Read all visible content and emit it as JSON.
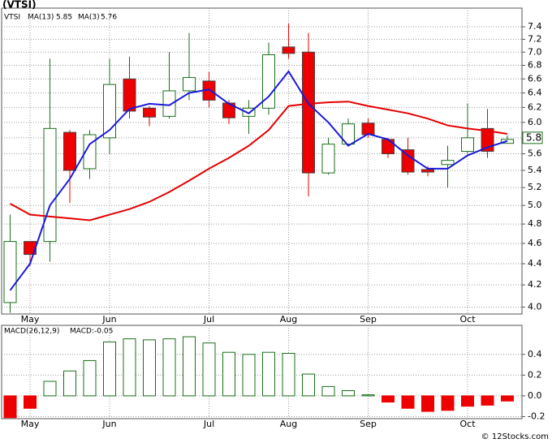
{
  "chart_data": [
    {
      "type": "candlestick",
      "title": "(VTSI)",
      "ticker": "VTSI",
      "categories": [
        null,
        "May",
        null,
        null,
        null,
        "Jun",
        null,
        null,
        null,
        null,
        "Jul",
        null,
        null,
        null,
        "Aug",
        null,
        null,
        null,
        "Sep",
        null,
        null,
        null,
        null,
        "Oct",
        null,
        null
      ],
      "open": [
        4.04,
        4.62,
        4.62,
        5.87,
        5.42,
        5.8,
        6.6,
        6.19,
        6.08,
        6.43,
        6.57,
        6.26,
        6.08,
        6.19,
        7.08,
        7.0,
        5.37,
        5.72,
        5.99,
        5.78,
        5.65,
        5.41,
        5.47,
        5.63,
        5.92,
        5.73
      ],
      "high": [
        4.9,
        4.62,
        6.9,
        5.9,
        5.9,
        6.9,
        6.93,
        6.22,
        7.0,
        7.3,
        6.7,
        6.3,
        6.3,
        7.15,
        7.45,
        7.3,
        5.8,
        6.05,
        6.05,
        5.8,
        5.8,
        5.45,
        5.7,
        6.25,
        6.18,
        5.83
      ],
      "low": [
        3.95,
        4.38,
        4.42,
        5.03,
        5.3,
        5.6,
        6.05,
        5.95,
        6.05,
        6.3,
        6.2,
        5.98,
        5.85,
        6.1,
        6.9,
        5.1,
        5.35,
        5.7,
        5.8,
        5.55,
        5.35,
        5.33,
        5.2,
        5.6,
        5.55,
        5.73
      ],
      "close": [
        4.62,
        4.49,
        5.92,
        5.4,
        5.84,
        6.52,
        6.15,
        6.07,
        6.43,
        6.62,
        6.3,
        6.06,
        6.19,
        6.96,
        6.98,
        5.37,
        5.72,
        5.98,
        5.84,
        5.6,
        5.38,
        5.38,
        5.52,
        5.8,
        5.63,
        5.78
      ],
      "up_color": "#1a6e1a",
      "down_color": "#ee0000",
      "series": [
        {
          "name": "MA(13)",
          "color": "#e60000",
          "last": 5.85,
          "values": [
            5.02,
            4.9,
            4.88,
            4.86,
            4.84,
            4.9,
            4.96,
            5.04,
            5.15,
            5.28,
            5.42,
            5.55,
            5.7,
            5.9,
            6.22,
            6.25,
            6.27,
            6.28,
            6.22,
            6.17,
            6.12,
            6.05,
            5.96,
            5.92,
            5.89,
            5.85
          ]
        },
        {
          "name": "MA(3)",
          "color": "#1a1adb",
          "last": 5.76,
          "values": [
            4.15,
            4.4,
            5.0,
            5.3,
            5.72,
            5.9,
            6.18,
            6.25,
            6.23,
            6.4,
            6.45,
            6.25,
            6.12,
            6.35,
            6.71,
            6.25,
            6.0,
            5.7,
            5.85,
            5.78,
            5.58,
            5.42,
            5.42,
            5.58,
            5.68,
            5.76
          ]
        }
      ],
      "last_price": 5.8,
      "log_scale": true,
      "grid": true,
      "ylim": [
        3.94,
        7.71
      ],
      "yticks": [
        {
          "value": 4,
          "label": "4.0"
        },
        4.2,
        4.4,
        4.6,
        4.8,
        {
          "value": 5,
          "label": "5.0"
        },
        5.2,
        5.4,
        5.6,
        5.8,
        {
          "value": 6,
          "label": "6.0"
        },
        6.2,
        6.4,
        6.6,
        6.8,
        {
          "value": 7,
          "label": "7.0"
        },
        7.2,
        7.4
      ]
    },
    {
      "type": "bar",
      "title": "MACD(26,12,9)",
      "annotation": "MACD:-0.05",
      "categories": [
        null,
        "May",
        null,
        null,
        null,
        "Jun",
        null,
        null,
        null,
        null,
        "Jul",
        null,
        null,
        null,
        "Aug",
        null,
        null,
        null,
        "Sep",
        null,
        null,
        null,
        null,
        "Oct",
        null,
        null
      ],
      "values": [
        -0.21,
        -0.12,
        0.14,
        0.24,
        0.34,
        0.52,
        0.55,
        0.54,
        0.55,
        0.57,
        0.51,
        0.42,
        0.4,
        0.42,
        0.41,
        0.21,
        0.09,
        0.05,
        0.01,
        -0.06,
        -0.12,
        -0.15,
        -0.14,
        -0.1,
        -0.09,
        -0.05
      ],
      "up_color": "#1a6e1a",
      "down_color": "#ee0000",
      "grid": true,
      "ylim": [
        -0.22,
        0.68
      ],
      "yticks": [
        0.4,
        0.2,
        {
          "value": 0,
          "label": "0.0"
        },
        -0.2
      ]
    }
  ],
  "footer": "© 12Stocks.com"
}
